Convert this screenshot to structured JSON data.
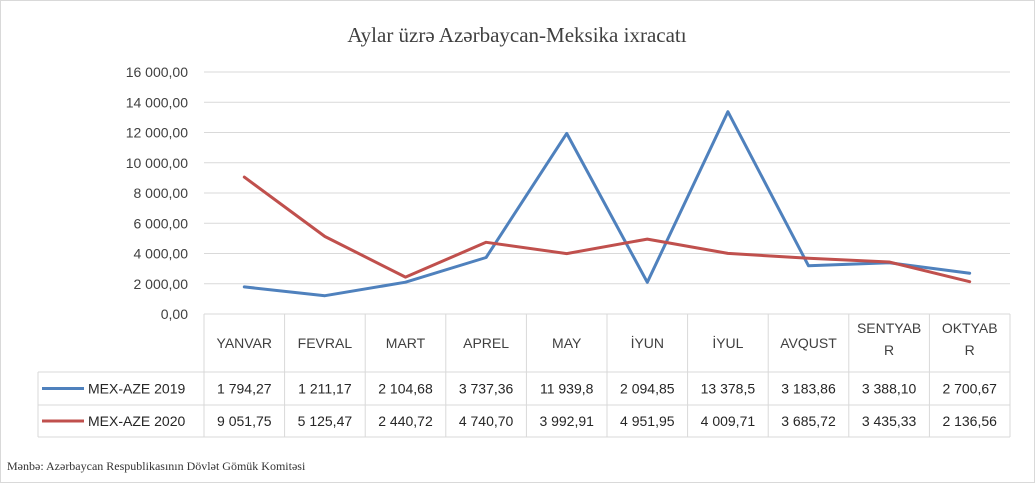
{
  "chart_data": {
    "type": "line",
    "title": "Aylar üzrə  Azərbaycan-Meksika ixracatı",
    "categories": [
      "YANVAR",
      "FEVRAL",
      "MART",
      "APREL",
      "MAY",
      "İYUN",
      "İYUL",
      "AVQUST",
      "SENTYABR",
      "OKTYABR"
    ],
    "category_lines": [
      [
        "YANVAR"
      ],
      [
        "FEVRAL"
      ],
      [
        "MART"
      ],
      [
        "APREL"
      ],
      [
        "MAY"
      ],
      [
        "İYUN"
      ],
      [
        "İYUL"
      ],
      [
        "AVQUST"
      ],
      [
        "SENTYAB",
        "R"
      ],
      [
        "OKTYAB",
        "R"
      ]
    ],
    "ylim": [
      0,
      16000
    ],
    "yticks": [
      0,
      2000,
      4000,
      6000,
      8000,
      10000,
      12000,
      14000,
      16000
    ],
    "ytick_labels": [
      "0,00",
      "2 000,00",
      "4 000,00",
      "6 000,00",
      "8 000,00",
      "10 000,00",
      "12 000,00",
      "14 000,00",
      "16 000,00"
    ],
    "grid": true,
    "legend_placement": "data-table",
    "series": [
      {
        "name": "MEX-AZE 2019",
        "color": "#4f81bd",
        "values": [
          1794.27,
          1211.17,
          2104.68,
          3737.36,
          11939.8,
          2094.85,
          13378.5,
          3183.86,
          3388.1,
          2700.67
        ],
        "labels": [
          "1 794,27",
          "1 211,17",
          "2 104,68",
          "3 737,36",
          "11 939,8",
          "2 094,85",
          "13 378,5",
          "3 183,86",
          "3 388,10",
          "2 700,67"
        ]
      },
      {
        "name": "MEX-AZE 2020",
        "color": "#c0504d",
        "values": [
          9051.75,
          5125.47,
          2440.72,
          4740.7,
          3992.91,
          4951.95,
          4009.71,
          3685.72,
          3435.33,
          2136.56
        ],
        "labels": [
          "9 051,75",
          "5 125,47",
          "2 440,72",
          "4 740,70",
          "3 992,91",
          "4 951,95",
          "4 009,71",
          "3 685,72",
          "3 435,33",
          "2 136,56"
        ]
      }
    ]
  },
  "source_note": "Mənbə: Azərbaycan Respublikasının Dövlət Gömük Komitəsi"
}
